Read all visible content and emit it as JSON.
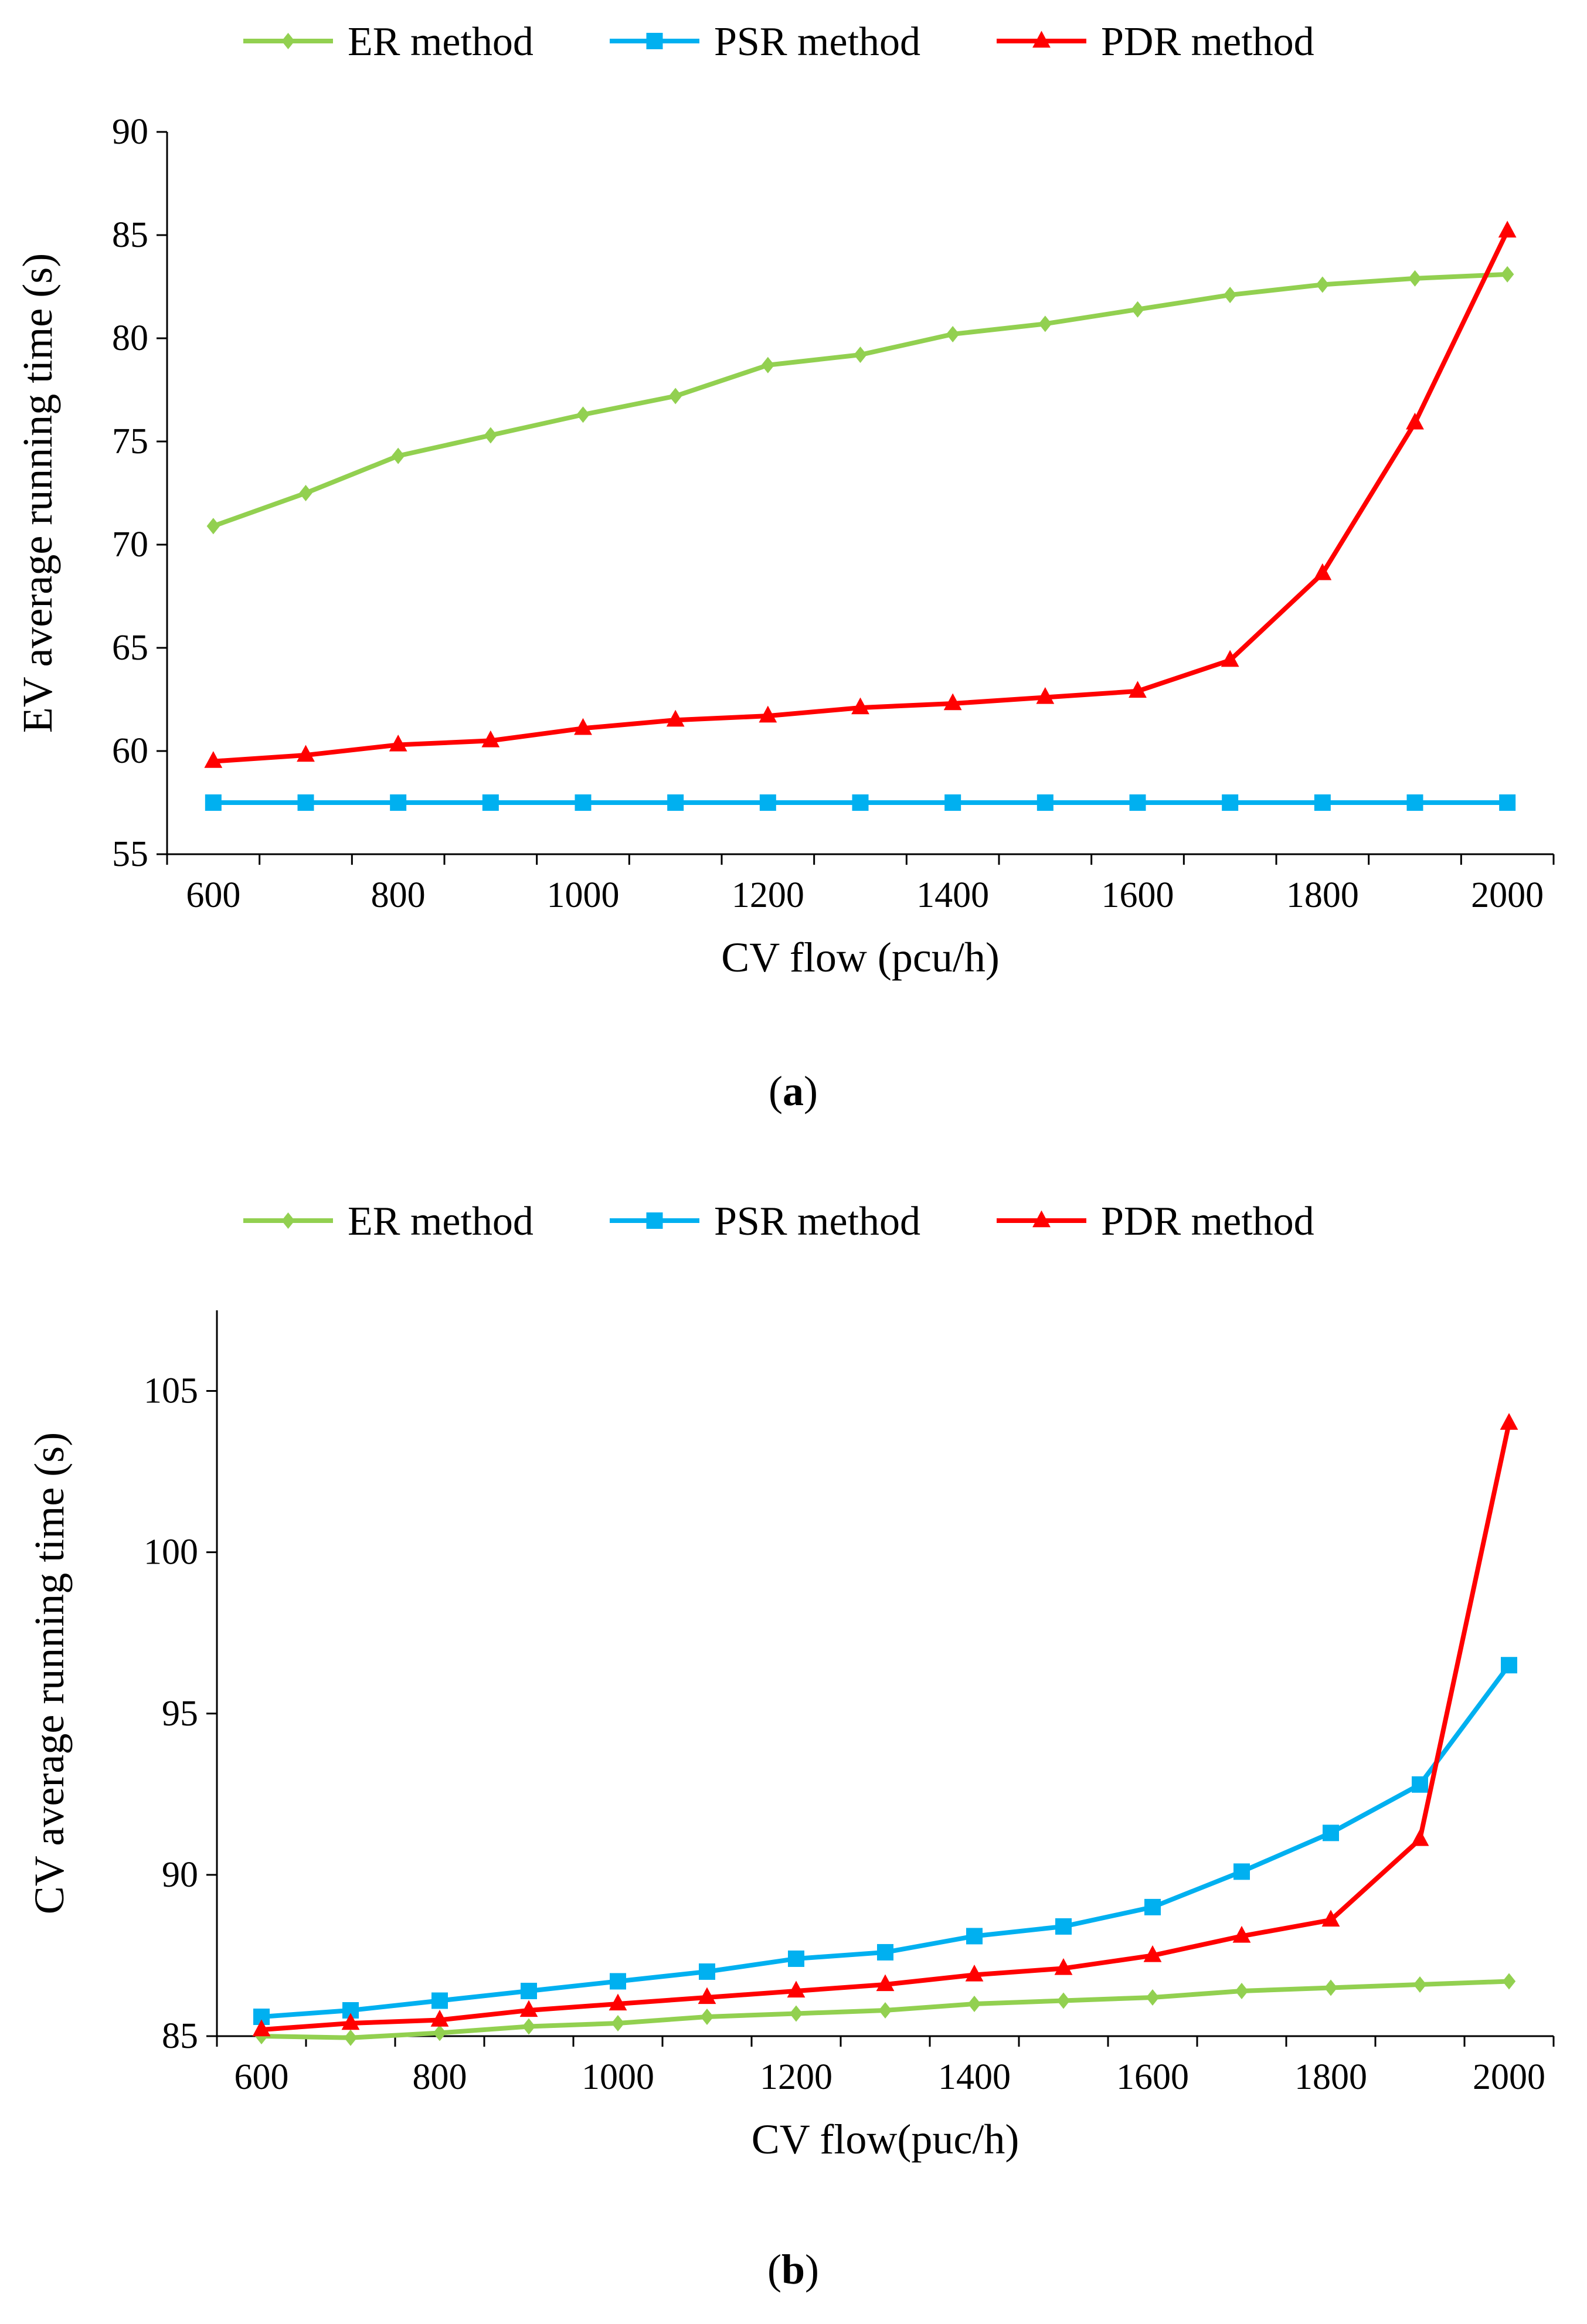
{
  "chart_data": [
    {
      "type": "line",
      "panel": "a",
      "caption_open": "(",
      "caption_letter": "a",
      "caption_close": ")",
      "title": "",
      "xlabel": "CV flow (pcu/h)",
      "ylabel": "EV average running time (s)",
      "x": [
        600,
        700,
        800,
        900,
        1000,
        1100,
        1200,
        1300,
        1400,
        1500,
        1600,
        1700,
        1800,
        1900,
        2000
      ],
      "xlim": [
        550,
        2050
      ],
      "ylim": [
        55,
        90
      ],
      "xticks": [
        600,
        800,
        1000,
        1200,
        1400,
        1600,
        1800,
        2000
      ],
      "yticks": [
        55,
        60,
        65,
        70,
        75,
        80,
        85,
        90
      ],
      "legend_position": "top",
      "series": [
        {
          "name": "ER method",
          "color": "#92D050",
          "marker": "diamond",
          "values": [
            70.9,
            72.5,
            74.3,
            75.3,
            76.3,
            77.2,
            78.7,
            79.2,
            80.2,
            80.7,
            81.4,
            82.1,
            82.6,
            82.9,
            83.1
          ]
        },
        {
          "name": "PSR method",
          "color": "#00B0F0",
          "marker": "square",
          "values": [
            57.5,
            57.5,
            57.5,
            57.5,
            57.5,
            57.5,
            57.5,
            57.5,
            57.5,
            57.5,
            57.5,
            57.5,
            57.5,
            57.5,
            57.5
          ]
        },
        {
          "name": "PDR method",
          "color": "#FF0000",
          "marker": "triangle",
          "values": [
            59.5,
            59.8,
            60.3,
            60.5,
            61.1,
            61.5,
            61.7,
            62.1,
            62.3,
            62.6,
            62.9,
            64.4,
            68.6,
            75.9,
            85.2
          ]
        }
      ]
    },
    {
      "type": "line",
      "panel": "b",
      "caption_open": "(",
      "caption_letter": "b",
      "caption_close": ")",
      "title": "",
      "xlabel": "CV flow(puc/h)",
      "ylabel": "CV average running time (s)",
      "x": [
        600,
        700,
        800,
        900,
        1000,
        1100,
        1200,
        1300,
        1400,
        1500,
        1600,
        1700,
        1800,
        1900,
        2000
      ],
      "xlim": [
        550,
        2050
      ],
      "ylim": [
        85,
        107.5
      ],
      "xticks": [
        600,
        800,
        1000,
        1200,
        1400,
        1600,
        1800,
        2000
      ],
      "yticks": [
        85,
        90,
        95,
        100,
        105
      ],
      "legend_position": "top",
      "series": [
        {
          "name": "ER method",
          "color": "#92D050",
          "marker": "diamond",
          "values": [
            85.0,
            84.95,
            85.1,
            85.3,
            85.4,
            85.6,
            85.7,
            85.8,
            86.0,
            86.1,
            86.2,
            86.4,
            86.5,
            86.6,
            86.7
          ]
        },
        {
          "name": "PSR method",
          "color": "#00B0F0",
          "marker": "square",
          "values": [
            85.6,
            85.8,
            86.1,
            86.4,
            86.7,
            87.0,
            87.4,
            87.6,
            88.1,
            88.4,
            89.0,
            90.1,
            91.3,
            92.8,
            96.5
          ]
        },
        {
          "name": "PDR method",
          "color": "#FF0000",
          "marker": "triangle",
          "values": [
            85.2,
            85.4,
            85.5,
            85.8,
            86.0,
            86.2,
            86.4,
            86.6,
            86.9,
            87.1,
            87.5,
            88.1,
            88.6,
            91.1,
            104.0
          ]
        }
      ]
    }
  ]
}
